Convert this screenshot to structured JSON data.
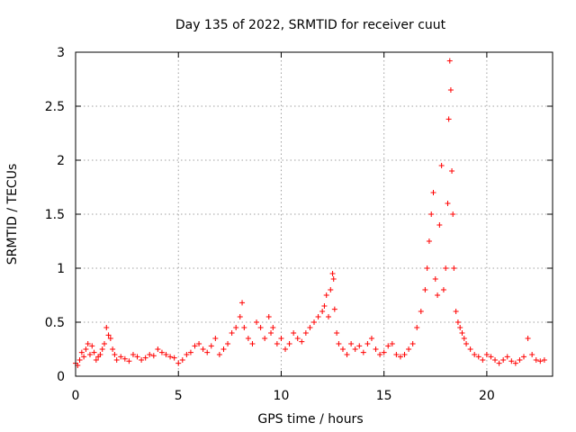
{
  "chart_data": {
    "type": "scatter",
    "title": "Day 135 of 2022, SRMTID for receiver cuut",
    "xlabel": "GPS time / hours",
    "ylabel": "SRMTID / TECUs",
    "xlim": [
      0,
      23.2
    ],
    "ylim": [
      0,
      3
    ],
    "grid": true,
    "marker": "+",
    "color": "#ff0000",
    "x_ticks": [
      0,
      5,
      10,
      15,
      20
    ],
    "x_tick_labels": [
      "0",
      "5",
      "10",
      "15",
      "20"
    ],
    "y_ticks": [
      0,
      0.5,
      1,
      1.5,
      2,
      2.5,
      3
    ],
    "y_tick_labels": [
      "0",
      "0.5",
      "1",
      "1.5",
      "2",
      "2.5",
      "3"
    ],
    "series": [
      {
        "name": "SRMTID",
        "x": [
          0.0,
          0.1,
          0.2,
          0.3,
          0.4,
          0.5,
          0.6,
          0.7,
          0.8,
          0.9,
          1.0,
          1.1,
          1.2,
          1.3,
          1.4,
          1.5,
          1.6,
          1.7,
          1.8,
          1.9,
          2.0,
          2.2,
          2.4,
          2.6,
          2.8,
          3.0,
          3.2,
          3.4,
          3.6,
          3.8,
          4.0,
          4.2,
          4.4,
          4.6,
          4.8,
          5.0,
          5.2,
          5.4,
          5.6,
          5.8,
          6.0,
          6.2,
          6.4,
          6.6,
          6.8,
          7.0,
          7.2,
          7.4,
          7.6,
          7.8,
          8.0,
          8.1,
          8.2,
          8.4,
          8.6,
          8.8,
          9.0,
          9.2,
          9.4,
          9.5,
          9.6,
          9.8,
          10.0,
          10.2,
          10.4,
          10.6,
          10.8,
          11.0,
          11.2,
          11.4,
          11.6,
          11.8,
          12.0,
          12.1,
          12.2,
          12.3,
          12.4,
          12.5,
          12.55,
          12.6,
          12.7,
          12.8,
          13.0,
          13.2,
          13.4,
          13.6,
          13.8,
          14.0,
          14.2,
          14.4,
          14.6,
          14.8,
          15.0,
          15.2,
          15.4,
          15.6,
          15.8,
          16.0,
          16.2,
          16.4,
          16.6,
          16.8,
          17.0,
          17.1,
          17.2,
          17.3,
          17.4,
          17.5,
          17.6,
          17.7,
          17.8,
          17.9,
          18.0,
          18.1,
          18.15,
          18.2,
          18.25,
          18.3,
          18.35,
          18.4,
          18.5,
          18.6,
          18.7,
          18.8,
          18.9,
          19.0,
          19.2,
          19.4,
          19.6,
          19.8,
          20.0,
          20.2,
          20.4,
          20.6,
          20.8,
          21.0,
          21.2,
          21.4,
          21.6,
          21.8,
          22.0,
          22.2,
          22.4,
          22.6,
          22.8
        ],
        "values": [
          0.12,
          0.1,
          0.15,
          0.22,
          0.18,
          0.25,
          0.3,
          0.2,
          0.28,
          0.22,
          0.15,
          0.18,
          0.2,
          0.25,
          0.3,
          0.45,
          0.38,
          0.35,
          0.25,
          0.2,
          0.15,
          0.18,
          0.16,
          0.14,
          0.2,
          0.18,
          0.15,
          0.17,
          0.2,
          0.19,
          0.25,
          0.22,
          0.2,
          0.18,
          0.17,
          0.12,
          0.15,
          0.2,
          0.22,
          0.28,
          0.3,
          0.25,
          0.22,
          0.28,
          0.35,
          0.2,
          0.25,
          0.3,
          0.4,
          0.45,
          0.55,
          0.68,
          0.45,
          0.35,
          0.3,
          0.5,
          0.45,
          0.35,
          0.55,
          0.4,
          0.45,
          0.3,
          0.35,
          0.25,
          0.3,
          0.4,
          0.35,
          0.32,
          0.4,
          0.45,
          0.5,
          0.55,
          0.6,
          0.65,
          0.75,
          0.55,
          0.8,
          0.95,
          0.9,
          0.62,
          0.4,
          0.3,
          0.25,
          0.2,
          0.3,
          0.25,
          0.28,
          0.22,
          0.3,
          0.35,
          0.25,
          0.2,
          0.22,
          0.28,
          0.3,
          0.2,
          0.18,
          0.2,
          0.25,
          0.3,
          0.45,
          0.6,
          0.8,
          1.0,
          1.25,
          1.5,
          1.7,
          0.9,
          0.75,
          1.4,
          1.95,
          0.8,
          1.0,
          1.6,
          2.38,
          2.92,
          2.65,
          1.9,
          1.5,
          1.0,
          0.6,
          0.5,
          0.45,
          0.4,
          0.35,
          0.3,
          0.25,
          0.2,
          0.18,
          0.15,
          0.2,
          0.18,
          0.15,
          0.12,
          0.15,
          0.18,
          0.14,
          0.12,
          0.15,
          0.18,
          0.35,
          0.2,
          0.15,
          0.14,
          0.15
        ]
      }
    ]
  }
}
